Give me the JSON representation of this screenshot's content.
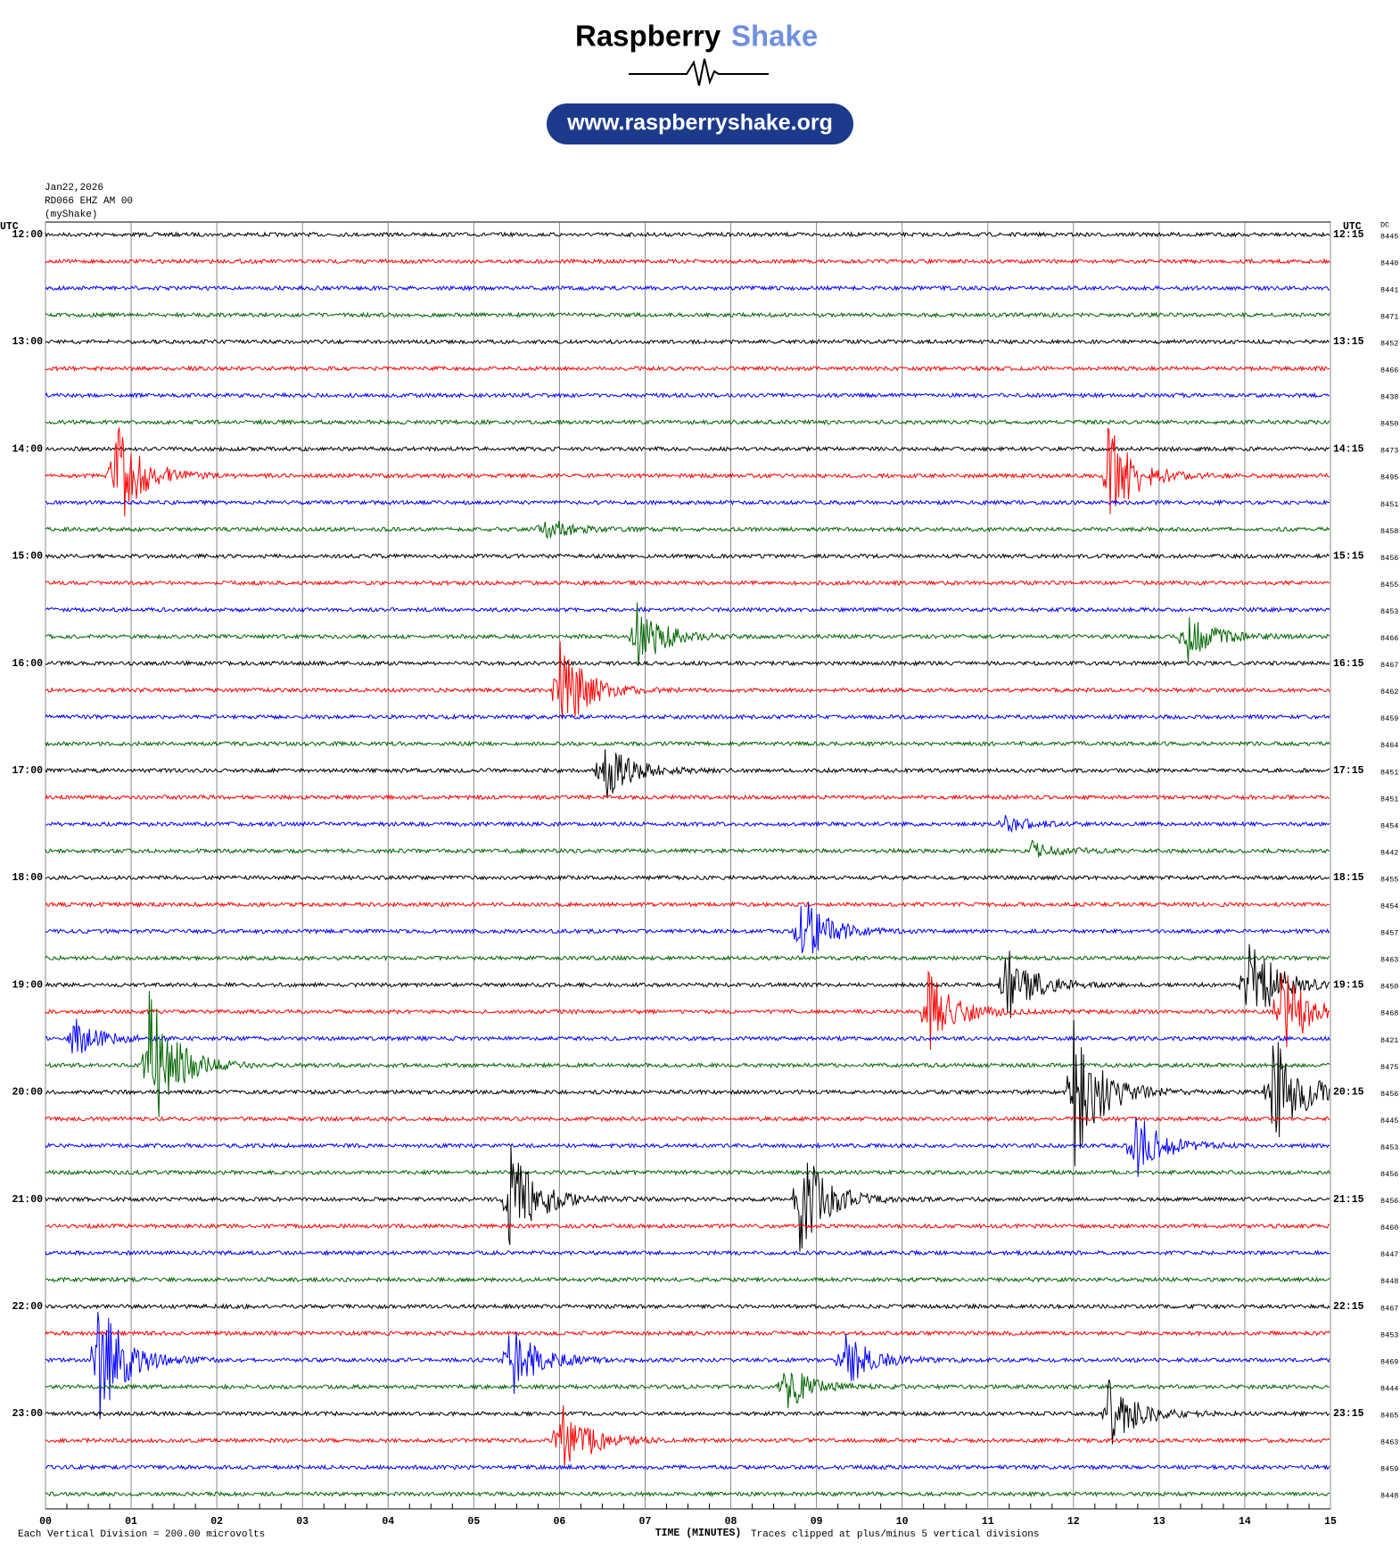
{
  "header": {
    "brand_primary": "Raspberry",
    "brand_secondary": "Shake",
    "url": "www.raspberryshake.org"
  },
  "station": {
    "date": "Jan22,2026",
    "channel": "RD066 EHZ AM 00",
    "source": "(myShake)"
  },
  "left_axis_title": "UTC",
  "right_axis_title": "UTC",
  "dc_title": "DC",
  "left_labels": [
    "12:00",
    "13:00",
    "14:00",
    "15:00",
    "16:00",
    "17:00",
    "18:00",
    "19:00",
    "20:00",
    "21:00",
    "22:00",
    "23:00"
  ],
  "right_labels": [
    "12:15",
    "13:15",
    "14:15",
    "15:15",
    "16:15",
    "17:15",
    "18:15",
    "19:15",
    "20:15",
    "21:15",
    "22:15",
    "23:15"
  ],
  "dc_values": [
    8445,
    8440,
    8441,
    8471,
    8452,
    8466,
    8438,
    8450,
    8473,
    8495,
    8451,
    8458,
    8456,
    8455,
    8453,
    8466,
    8467,
    8462,
    8459,
    8464,
    8451,
    8451,
    8454,
    8442,
    8455,
    8454,
    8457,
    8463,
    8450,
    8468,
    8421,
    8475,
    8456,
    8445,
    8453,
    8456,
    8456,
    8460,
    8447,
    8448,
    8467,
    8453,
    8469,
    8444,
    8465,
    8463,
    8459,
    8448
  ],
  "x_labels": [
    "00",
    "01",
    "02",
    "03",
    "04",
    "05",
    "06",
    "07",
    "08",
    "09",
    "10",
    "11",
    "12",
    "13",
    "14",
    "15"
  ],
  "trace_colors": [
    "#000000",
    "#ff0000",
    "#0000ff",
    "#006400"
  ],
  "footer": {
    "division": "Each Vertical Division =  200.00 microvolts",
    "axis_title": "TIME (MINUTES)",
    "clip_note": "Traces clipped at plus/minus 5 vertical divisions"
  }
}
